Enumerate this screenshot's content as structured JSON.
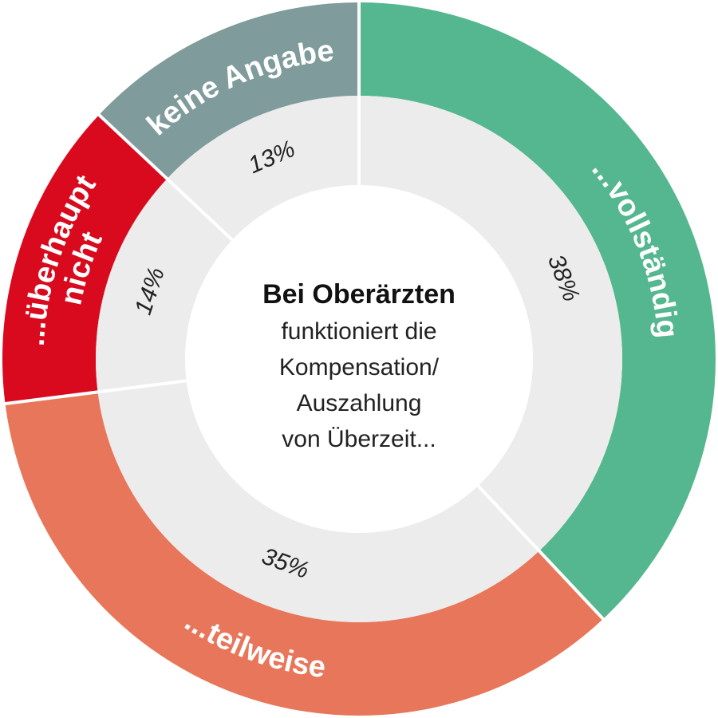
{
  "chart_data": {
    "type": "pie",
    "style": "donut",
    "center_text": {
      "title": "Bei Oberärzten",
      "lines": [
        "funktioniert die",
        "Kompensation/",
        "Auszahlung",
        "von Überzeit..."
      ]
    },
    "slices": [
      {
        "label": "...vollständig",
        "label_lines": [
          "...vollständig"
        ],
        "value": 38,
        "value_label": "38%",
        "color": "#55b78f"
      },
      {
        "label": "...teilweise",
        "label_lines": [
          "...teilweise"
        ],
        "value": 35,
        "value_label": "35%",
        "color": "#e8765a"
      },
      {
        "label": "...überhaupt nicht",
        "label_lines": [
          "...überhaupt",
          "nicht"
        ],
        "value": 14,
        "value_label": "14%",
        "color": "#d9091e"
      },
      {
        "label": "keine Angabe",
        "label_lines": [
          "keine Angabe"
        ],
        "value": 13,
        "value_label": "13%",
        "color": "#809b9b"
      }
    ],
    "inner_ring_color": "#ececec"
  }
}
